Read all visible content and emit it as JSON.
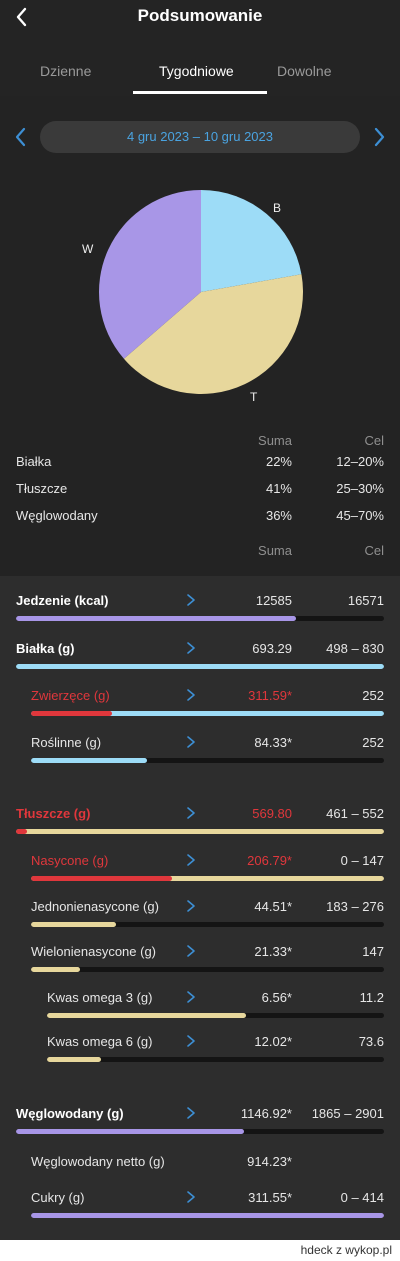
{
  "header": {
    "title": "Podsumowanie"
  },
  "tabs": [
    {
      "label": "Dzienne"
    },
    {
      "label": "Tygodniowe"
    },
    {
      "label": "Dowolne"
    }
  ],
  "date_range": "4 gru 2023  –  10 gru 2023",
  "chart_data": {
    "type": "pie",
    "labels": [
      "B",
      "T",
      "W"
    ],
    "values": [
      22,
      41,
      36
    ],
    "colors": [
      "#9ddcf7",
      "#e7d79c",
      "#a896e7"
    ]
  },
  "macro_table": {
    "col_sum": "Suma",
    "col_goal": "Cel",
    "rows": [
      {
        "label": "Białka",
        "sum": "22%",
        "goal": "12–20%"
      },
      {
        "label": "Tłuszcze",
        "sum": "41%",
        "goal": "25–30%"
      },
      {
        "label": "Węglowodany",
        "sum": "36%",
        "goal": "45–70%"
      }
    ]
  },
  "details": {
    "col_sum": "Suma",
    "col_goal": "Cel",
    "items": [
      {
        "label": "Jedzenie (kcal)",
        "sum": "12585",
        "goal": "16571",
        "fill": 0.76,
        "color": "#a896e7"
      },
      {
        "label": "Białka (g)",
        "sum": "693.29",
        "goal": "498 – 830",
        "fill": 1.0,
        "color": "#9ddcf7"
      },
      {
        "label": "Zwierzęce (g)",
        "sum": "311.59*",
        "goal": "252",
        "fill": 1.0,
        "color": "#9ddcf7",
        "over": 0.23
      },
      {
        "label": "Roślinne (g)",
        "sum": "84.33*",
        "goal": "252",
        "fill": 0.33,
        "color": "#9ddcf7"
      },
      {
        "label": "Tłuszcze (g)",
        "sum": "569.80",
        "goal": "461 – 552",
        "fill": 1.0,
        "color": "#e7d79c",
        "over": 0.03
      },
      {
        "label": "Nasycone (g)",
        "sum": "206.79*",
        "goal": "0 – 147",
        "fill": 1.0,
        "color": "#e7d79c",
        "over": 0.4
      },
      {
        "label": "Jednonienasycone (g)",
        "sum": "44.51*",
        "goal": "183 – 276",
        "fill": 0.24,
        "color": "#e7d79c"
      },
      {
        "label": "Wielonienasycone (g)",
        "sum": "21.33*",
        "goal": "147",
        "fill": 0.14,
        "color": "#e7d79c"
      },
      {
        "label": "Kwas omega 3 (g)",
        "sum": "6.56*",
        "goal": "11.2",
        "fill": 0.59,
        "color": "#e7d79c"
      },
      {
        "label": "Kwas omega 6 (g)",
        "sum": "12.02*",
        "goal": "73.6",
        "fill": 0.16,
        "color": "#e7d79c"
      },
      {
        "label": "Węglowodany (g)",
        "sum": "1146.92*",
        "goal": "1865 – 2901",
        "fill": 0.62,
        "color": "#a896e7"
      },
      {
        "label": "Węglowodany netto (g)",
        "sum": "914.23*",
        "goal": ""
      },
      {
        "label": "Cukry (g)",
        "sum": "311.55*",
        "goal": "0 – 414",
        "fill": 1.0,
        "color": "#a896e7"
      }
    ]
  },
  "footer": {
    "credit": "hdeck z wykop.pl"
  }
}
